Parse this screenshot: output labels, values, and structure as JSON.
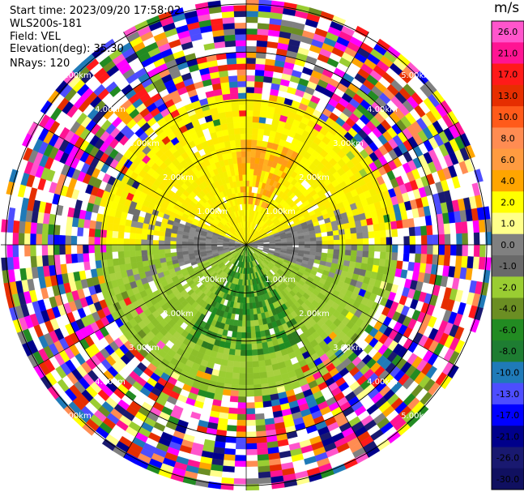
{
  "header": {
    "start_time": "Start time: 2023/09/20 17:58:02",
    "instrument": "WLS200s-181",
    "field": "Field: VEL",
    "elevation": "Elevation(deg): 35.30",
    "nrays": "NRays: 120"
  },
  "colorbar": {
    "unit": "m/s",
    "ticks": [
      "26.0",
      "21.0",
      "17.0",
      "13.0",
      "10.0",
      "8.0",
      "6.0",
      "4.0",
      "2.0",
      "1.0",
      "0.0",
      "-1.0",
      "-2.0",
      "-4.0",
      "-6.0",
      "-8.0",
      "-10.0",
      "-13.0",
      "-17.0",
      "-21.0",
      "-26.0",
      "-30.0"
    ],
    "colors": [
      "#ff55cc",
      "#ff1493",
      "#ff1a1a",
      "#e62e00",
      "#ff5a1a",
      "#ff8c52",
      "#ff9b40",
      "#ffa500",
      "#ffff00",
      "#ffff8a",
      "#808080",
      "#696969",
      "#9acd32",
      "#6b8e23",
      "#228b22",
      "#1e7d32",
      "#1f7ab8",
      "#4d4dff",
      "#0000ff",
      "#00008b",
      "#191970",
      "#101060"
    ]
  },
  "chart_data": {
    "type": "heatmap",
    "description_of_field": "PPI radial velocity",
    "nrays": 120,
    "range_rings_km": [
      "1.00km",
      "2.00km",
      "3.00km",
      "4.00km",
      "5.00km"
    ],
    "range_ring_values_km": [
      1,
      2,
      3,
      4,
      5
    ],
    "max_range_km": 5.1,
    "dominant_pattern": {
      "north_sector": "2.0 to 6.0 m/s (receding, yellow/orange)",
      "south_sector": "-2.0 to -6.0 m/s (approaching, green)",
      "east_west_near_range": "0.0 to -1.0 m/s (gray)",
      "beyond_3km": "noisy mixed values spanning -30.0 to 26.0 m/s"
    },
    "colorbar_min": -30.0,
    "colorbar_max": 26.0
  }
}
